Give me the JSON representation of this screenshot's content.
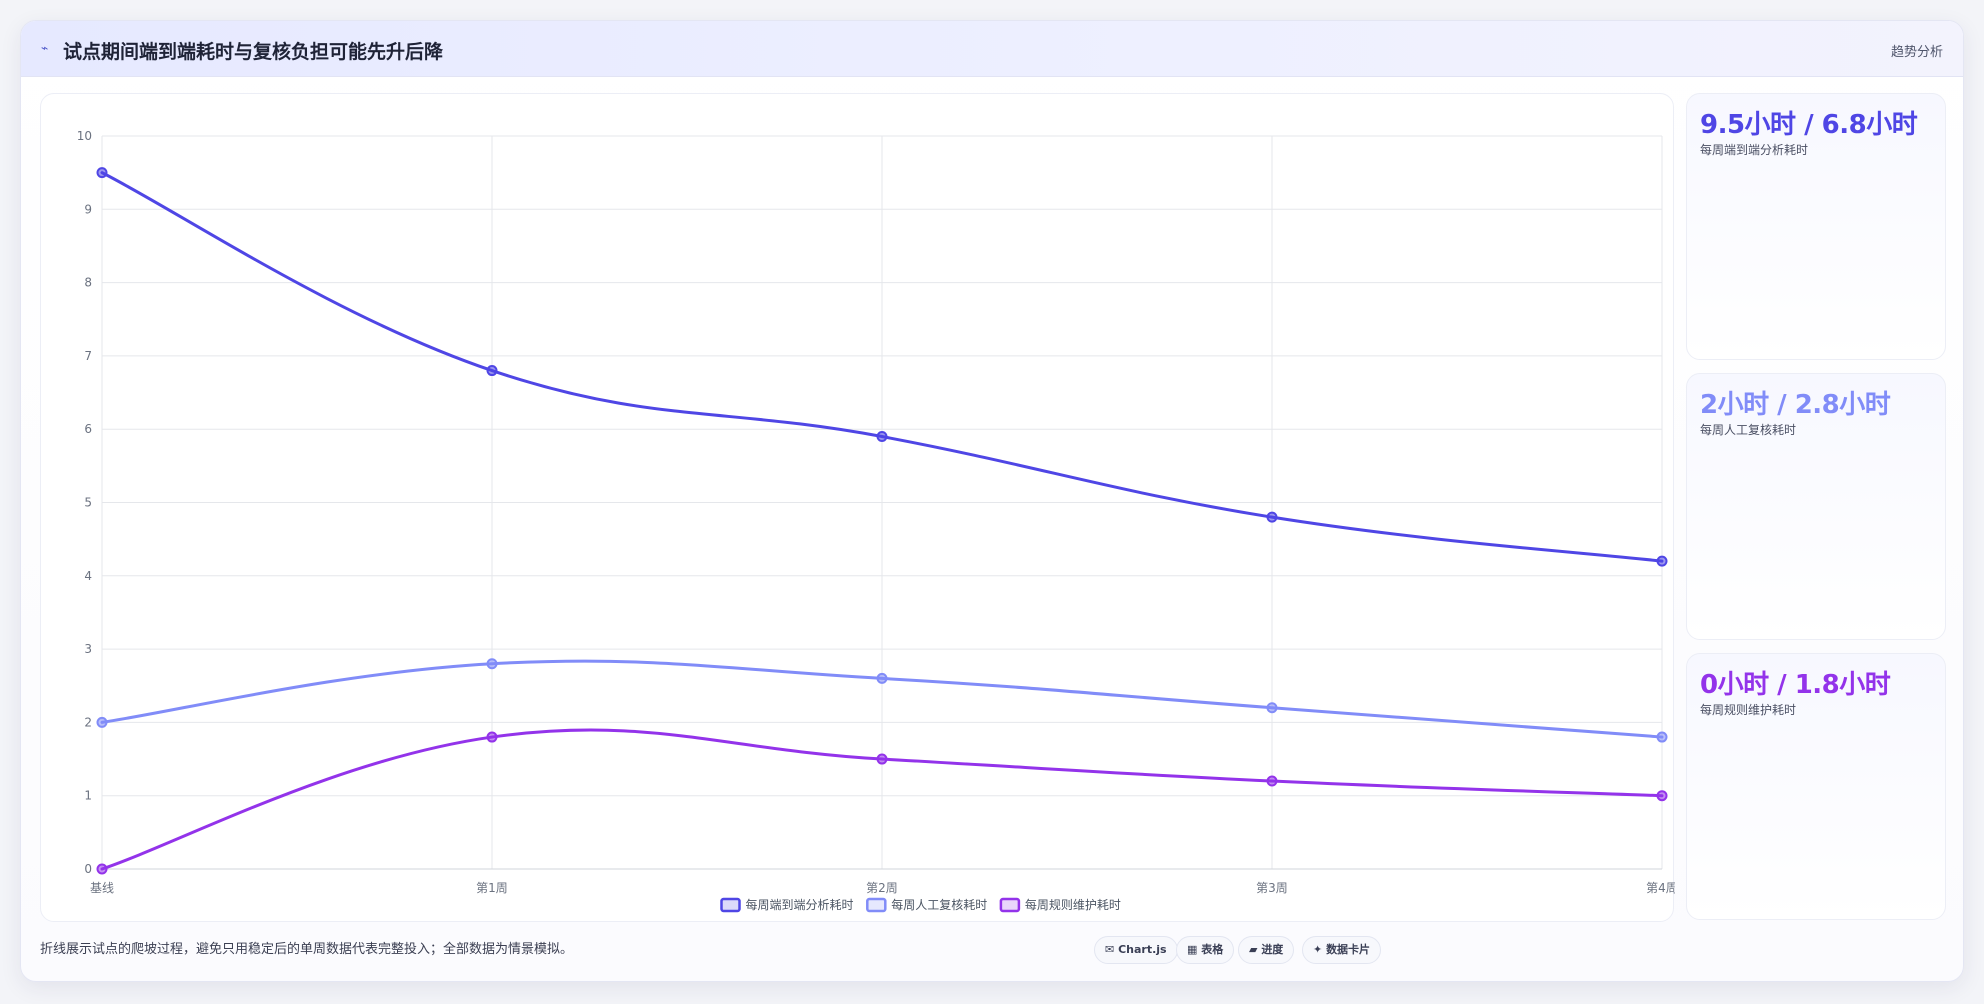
{
  "header": {
    "icon": "⌁",
    "title": "试点期间端到端耗时与复核负担可能先升后降",
    "tag": "趋势分析"
  },
  "colors": {
    "accent": "#4f46e5",
    "series_1": "#4f46e5",
    "series_2": "#818cf8",
    "series_3": "#9333ea",
    "grid": "#e5e7eb"
  },
  "stats": [
    {
      "value": "9.5小时 / 6.8小时",
      "label": "每周端到端分析耗时",
      "color": "#4f46e5"
    },
    {
      "value": "2小时 / 2.8小时",
      "label": "每周人工复核耗时",
      "color": "#818cf8"
    },
    {
      "value": "0小时 / 1.8小时",
      "label": "每周规则维护耗时",
      "color": "#9333ea"
    }
  ],
  "footnote": "折线展示试点的爬坡过程，避免只用稳定后的单周数据代表完整投入；全部数据为情景模拟。",
  "chips": [
    {
      "icon": "✉",
      "label": "Chart.js"
    },
    {
      "icon": "▦",
      "label": "表格"
    },
    {
      "icon": "▰",
      "label": "进度"
    },
    {
      "icon": "✦",
      "label": "数据卡片"
    }
  ],
  "chart_data": {
    "type": "line",
    "categories": [
      "基线",
      "第1周",
      "第2周",
      "第3周",
      "第4周"
    ],
    "ylim": [
      0,
      10
    ],
    "yticks": [
      0,
      1,
      2,
      3,
      4,
      5,
      6,
      7,
      8,
      9,
      10
    ],
    "grid": true,
    "legend_position": "bottom",
    "series": [
      {
        "name": "每周端到端分析耗时",
        "values": [
          9.5,
          6.8,
          5.9,
          4.8,
          4.2
        ],
        "color": "#4f46e5"
      },
      {
        "name": "每周人工复核耗时",
        "values": [
          2.0,
          2.8,
          2.6,
          2.2,
          1.8
        ],
        "color": "#818cf8"
      },
      {
        "name": "每周规则维护耗时",
        "values": [
          0.0,
          1.8,
          1.5,
          1.2,
          1.0
        ],
        "color": "#9333ea"
      }
    ]
  }
}
